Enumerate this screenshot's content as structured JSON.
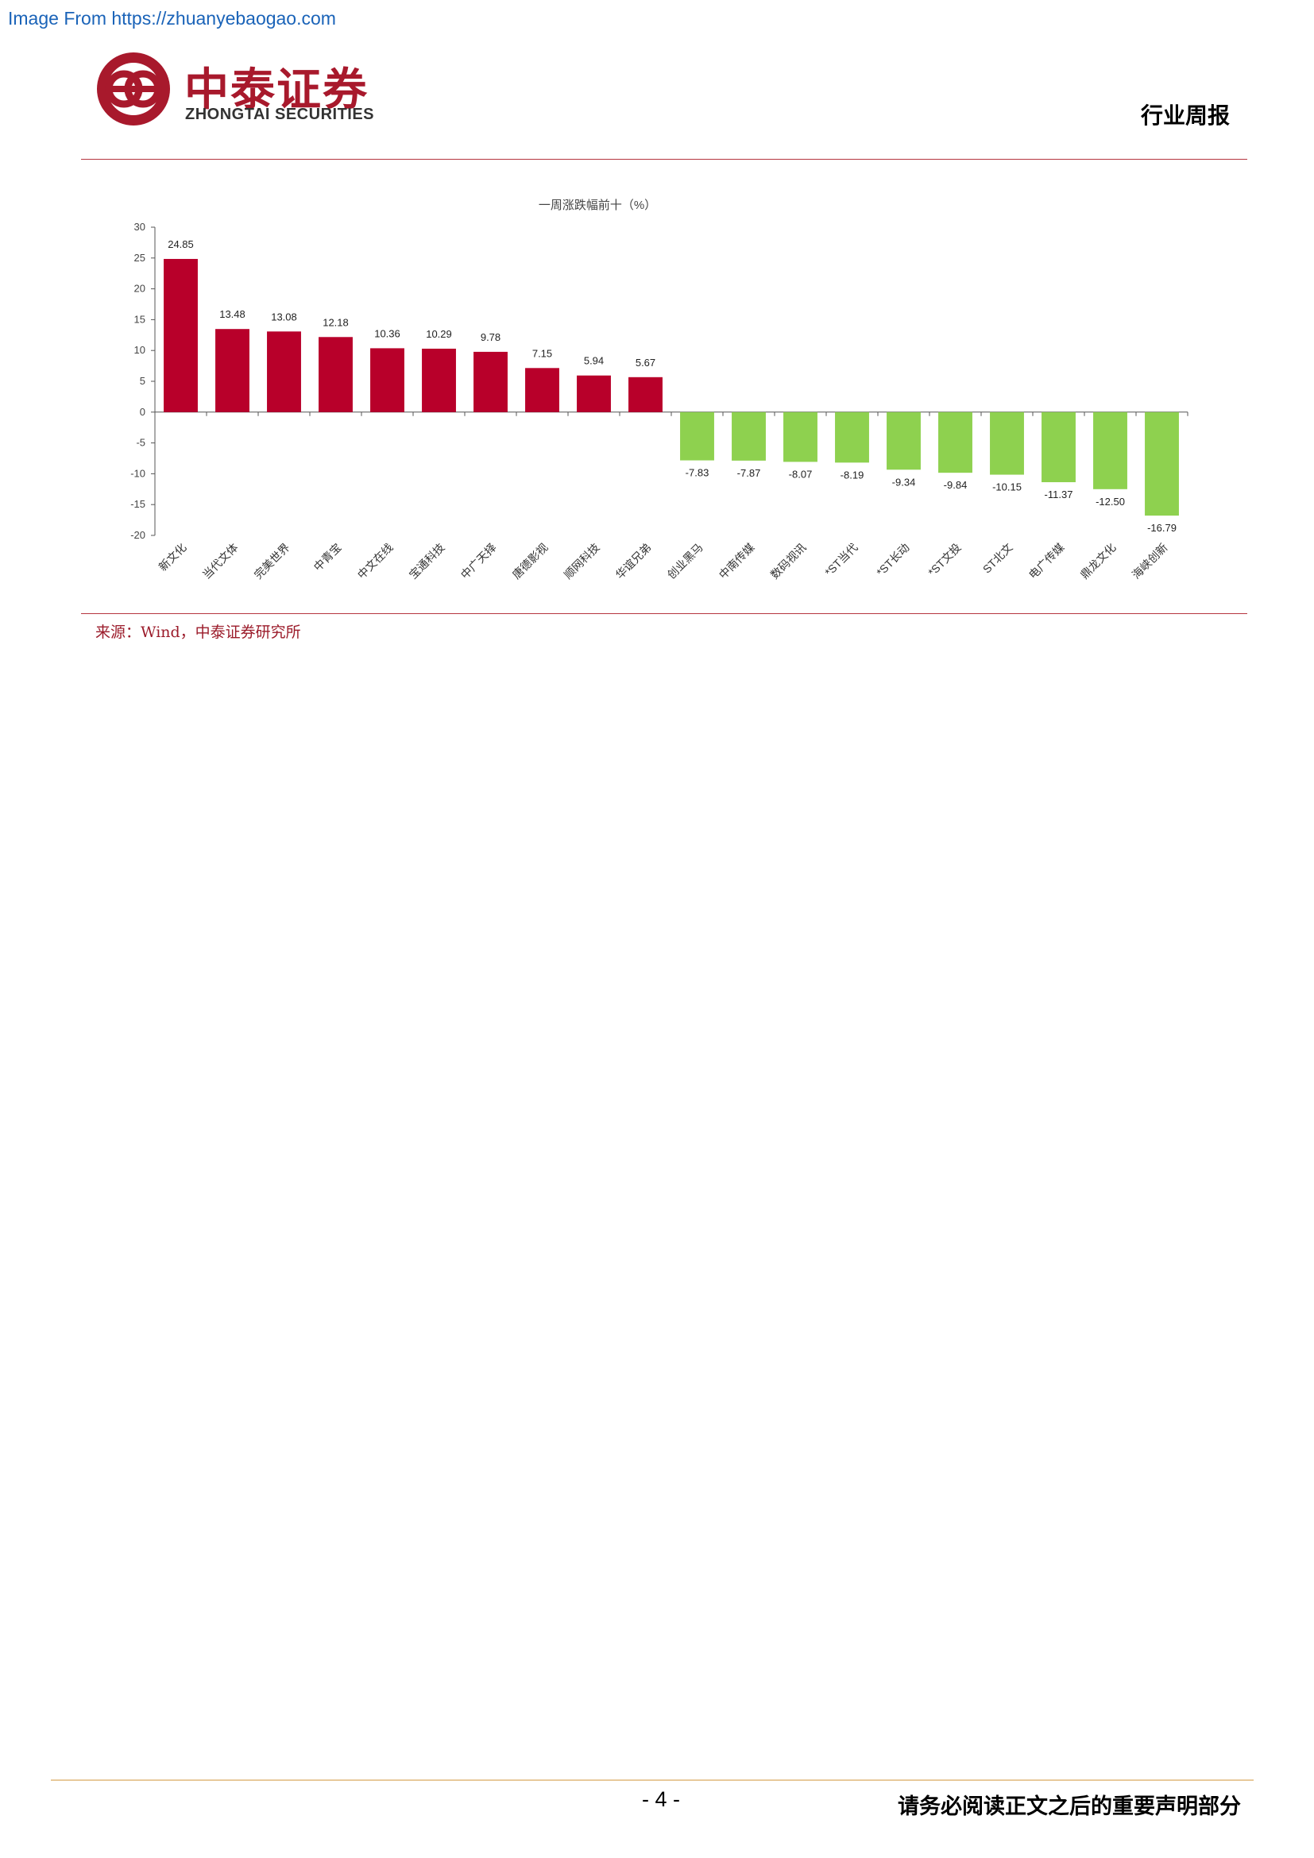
{
  "watermark": "Image From https://zhuanyebaogao.com",
  "header": {
    "logo_cn": "中泰证券",
    "logo_en": "ZHONGTAI SECURITIES",
    "report_type": "行业周报"
  },
  "source": "来源：Wind，中泰证券研究所",
  "footer": {
    "page_number": "- 4 -",
    "disclaimer": "请务必阅读正文之后的重要声明部分"
  },
  "colors": {
    "positive": "#b8002a",
    "negative": "#8ed14f",
    "rule": "#b5343f",
    "brand": "#a8192c"
  },
  "chart_data": {
    "type": "bar",
    "title": "一周涨跌幅前十（%）",
    "xlabel": "",
    "ylabel": "",
    "ylim": [
      -20,
      30
    ],
    "yticks": [
      30,
      25,
      20,
      15,
      10,
      5,
      0,
      -5,
      -10,
      -15,
      -20
    ],
    "grid": false,
    "legend": "none",
    "categories": [
      "新文化",
      "当代文体",
      "完美世界",
      "中青宝",
      "中文在线",
      "宝通科技",
      "中广天择",
      "唐德影视",
      "顺网科技",
      "华谊兄弟",
      "创业黑马",
      "中南传媒",
      "数码视讯",
      "*ST当代",
      "*ST长动",
      "*ST文投",
      "ST北文",
      "电广传媒",
      "鼎龙文化",
      "海峡创新"
    ],
    "values": [
      24.85,
      13.48,
      13.08,
      12.18,
      10.36,
      10.29,
      9.78,
      7.15,
      5.94,
      5.67,
      -7.83,
      -7.87,
      -8.07,
      -8.19,
      -9.34,
      -9.84,
      -10.15,
      -11.37,
      -12.5,
      -16.79
    ],
    "labels": [
      "24.85",
      "13.48",
      "13.08",
      "12.18",
      "10.36",
      "10.29",
      "9.78",
      "7.15",
      "5.94",
      "5.67",
      "-7.83",
      "-7.87",
      "-8.07",
      "-8.19",
      "-9.34",
      "-9.84",
      "-10.15",
      "-11.37",
      "-12.50",
      "-16.79"
    ]
  }
}
